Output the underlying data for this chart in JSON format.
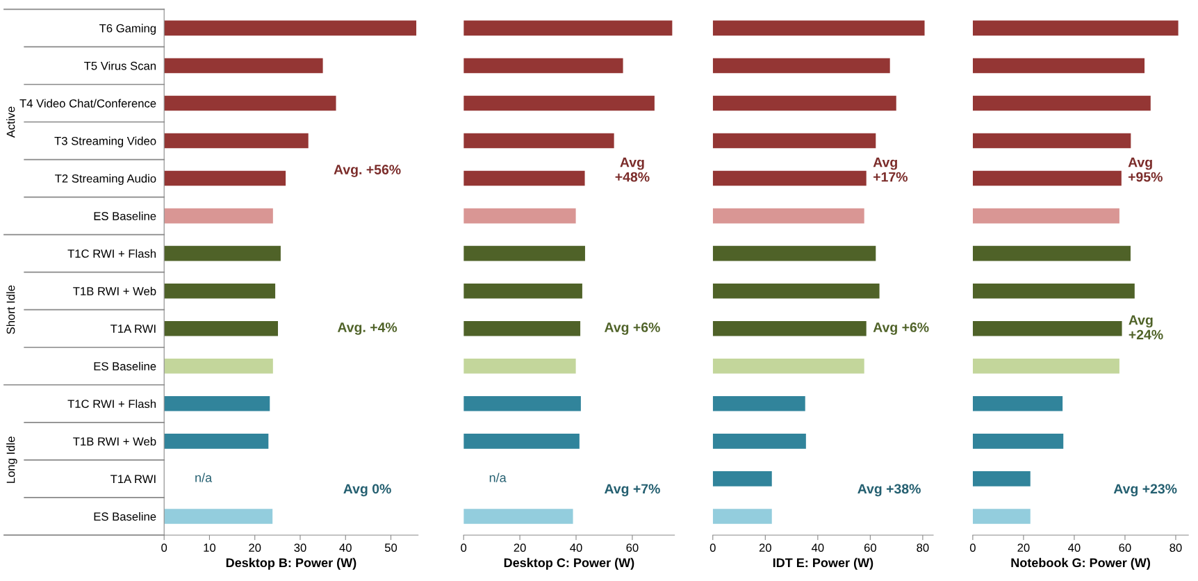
{
  "chart_data": [
    {
      "type": "bar",
      "orientation": "horizontal",
      "xlabel": "Desktop B: Power (W)",
      "categories": [
        "T6 Gaming",
        "T5 Virus Scan",
        "T4 Video Chat/Conference",
        "T3 Streaming Video",
        "T2 Streaming Audio",
        "ES Baseline",
        "T1C RWI + Flash",
        "T1B RWI + Web",
        "T1A RWI",
        "ES Baseline",
        "T1C RWI + Flash",
        "T1B RWI + Web",
        "T1A RWI",
        "ES Baseline"
      ],
      "values": [
        55.6,
        35.0,
        37.9,
        31.8,
        26.8,
        24.0,
        25.7,
        24.5,
        25.1,
        24.0,
        23.3,
        23.0,
        null,
        23.9
      ],
      "value_labels": [
        null,
        null,
        null,
        null,
        null,
        null,
        null,
        null,
        null,
        null,
        null,
        null,
        "n/a",
        null
      ],
      "colors": [
        "#943634",
        "#943634",
        "#943634",
        "#943634",
        "#943634",
        "#d99694",
        "#4f6228",
        "#4f6228",
        "#4f6228",
        "#c3d69b",
        "#31849b",
        "#31849b",
        "#31849b",
        "#93cddd"
      ],
      "xlim": [
        0,
        56
      ],
      "xticks": [
        0,
        10,
        20,
        30,
        40,
        50
      ],
      "annotations": [
        "Avg. +56%",
        "Avg. +4%",
        "Avg 0%",
        "Active",
        "Short Idle",
        "Long Idle"
      ]
    },
    {
      "type": "bar",
      "orientation": "horizontal",
      "xlabel": "Desktop C: Power (W)",
      "tick_labels": "x",
      "categories": [
        null,
        null,
        null,
        null,
        null,
        null,
        null,
        null,
        null,
        null,
        null,
        null,
        null,
        null
      ],
      "values": [
        74.2,
        56.7,
        67.9,
        53.5,
        43.1,
        39.9,
        43.2,
        42.2,
        41.5,
        39.9,
        41.7,
        41.2,
        null,
        38.9
      ],
      "value_labels": [
        null,
        null,
        null,
        null,
        null,
        null,
        null,
        null,
        null,
        null,
        null,
        null,
        "n/a",
        null
      ],
      "colors": [
        "#943634",
        "#943634",
        "#943634",
        "#943634",
        "#943634",
        "#d99694",
        "#4f6228",
        "#4f6228",
        "#4f6228",
        "#c3d69b",
        "#31849b",
        "#31849b",
        "#31849b",
        "#93cddd"
      ],
      "xlim": [
        0,
        75
      ],
      "xticks": [
        0,
        20,
        40,
        60
      ],
      "annotations": [
        "Avg\n+48%",
        "Avg +6%",
        "Avg +7%"
      ]
    },
    {
      "type": "bar",
      "orientation": "horizontal",
      "xlabel": "IDT E: Power (W)",
      "tick_labels": "x",
      "categories": [
        null,
        null,
        null,
        null,
        null,
        null,
        null,
        null,
        null,
        null,
        null,
        null,
        null,
        null
      ],
      "values": [
        80.7,
        67.5,
        69.9,
        62.1,
        58.5,
        57.7,
        62.1,
        63.5,
        58.5,
        57.7,
        35.2,
        35.5,
        22.5,
        22.5
      ],
      "colors": [
        "#943634",
        "#943634",
        "#943634",
        "#943634",
        "#943634",
        "#d99694",
        "#4f6228",
        "#4f6228",
        "#4f6228",
        "#c3d69b",
        "#31849b",
        "#31849b",
        "#31849b",
        "#93cddd"
      ],
      "xlim": [
        0,
        84
      ],
      "xticks": [
        0,
        20,
        40,
        60,
        80
      ],
      "annotations": [
        "Avg\n+17%",
        "Avg +6%",
        "Avg +38%"
      ]
    },
    {
      "type": "bar",
      "orientation": "horizontal",
      "xlabel": "Notebook G: Power (W)",
      "tick_labels": "x",
      "categories": [
        null,
        null,
        null,
        null,
        null,
        null,
        null,
        null,
        null,
        null,
        null,
        null,
        null,
        null
      ],
      "values": [
        81.0,
        67.7,
        70.1,
        62.3,
        58.6,
        57.8,
        62.2,
        63.8,
        58.8,
        57.8,
        35.4,
        35.7,
        22.7,
        22.7
      ],
      "colors": [
        "#943634",
        "#943634",
        "#943634",
        "#943634",
        "#943634",
        "#d99694",
        "#4f6228",
        "#4f6228",
        "#4f6228",
        "#c3d69b",
        "#31849b",
        "#31849b",
        "#31849b",
        "#93cddd"
      ],
      "xlim": [
        0,
        85
      ],
      "xticks": [
        0,
        20,
        40,
        60,
        80
      ],
      "annotations": [
        "Avg\n+95%",
        "Avg\n+24%",
        "Avg +23%"
      ]
    }
  ]
}
